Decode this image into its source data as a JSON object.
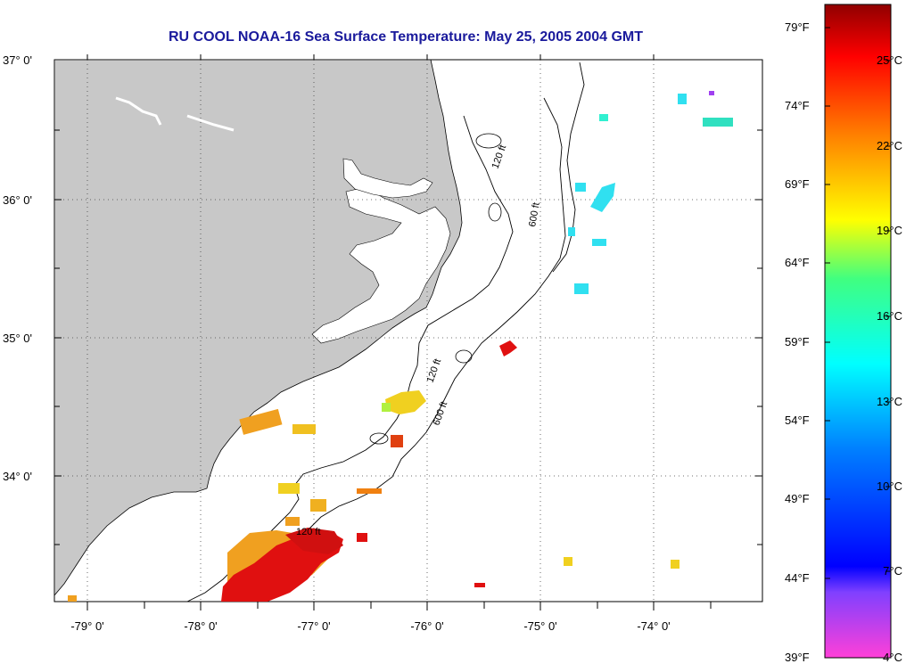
{
  "title": "RU COOL  NOAA-16  Sea Surface Temperature:  May 25, 2005 2004 GMT",
  "latitude_labels": [
    "37° 0'",
    "36° 0'",
    "35° 0'",
    "34° 0'"
  ],
  "longitude_labels": [
    "-79° 0'",
    "-78° 0'",
    "-77° 0'",
    "-76° 0'",
    "-75° 0'",
    "-74° 0'"
  ],
  "isobath_labels": [
    "120 ft",
    "600 ft"
  ],
  "colorbar": {
    "fahrenheit_labels": [
      "79°F",
      "74°F",
      "69°F",
      "64°F",
      "59°F",
      "54°F",
      "49°F",
      "44°F",
      "39°F"
    ],
    "celsius_labels": [
      "25°C",
      "22°C",
      "19°C",
      "16°C",
      "13°C",
      "10°C",
      "7°C",
      "4°C"
    ]
  },
  "colors": {
    "land": "#c8c8c8",
    "title": "#1a1a9c",
    "warm": "#e01010",
    "orange": "#f09010",
    "yellow": "#f0d020",
    "cyan": "#30e0f0"
  }
}
